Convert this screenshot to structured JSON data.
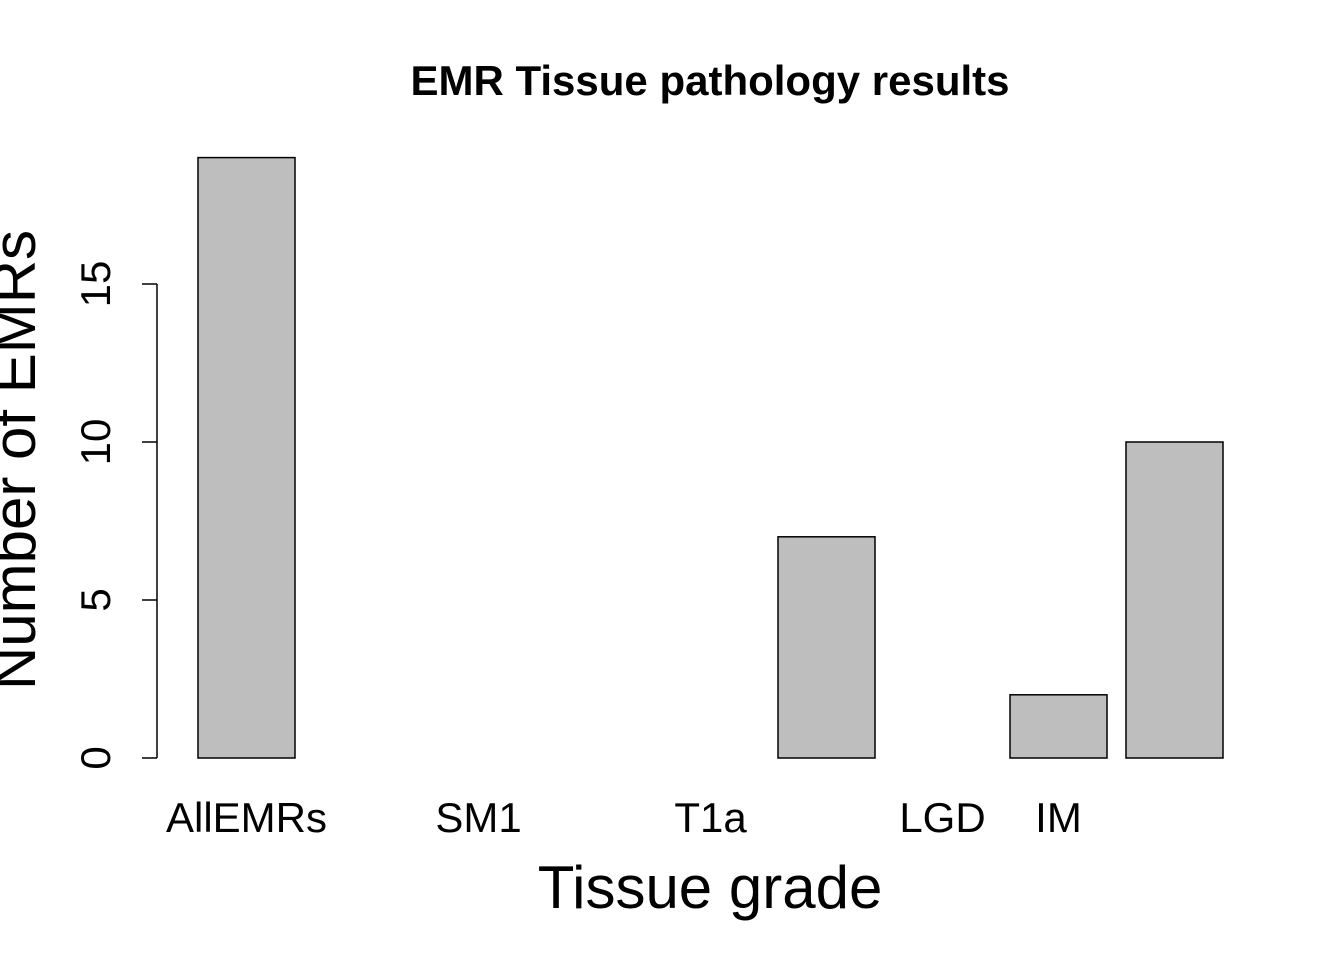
{
  "chart_data": {
    "type": "bar",
    "title": "EMR Tissue pathology results",
    "xlabel": "Tissue grade",
    "ylabel": "Number of EMRs",
    "categories": [
      "AllEMRs",
      "",
      "SM1",
      "",
      "T1a",
      "",
      "LGD",
      "IM",
      ""
    ],
    "values": [
      19,
      0,
      0,
      0,
      0,
      7,
      0,
      2,
      10
    ],
    "yticks": [
      0,
      5,
      10,
      15
    ],
    "ylim": [
      0,
      19
    ],
    "bar_color": "#bebebe",
    "bar_edge_color": "#000000",
    "grid": false,
    "legend": "none"
  }
}
